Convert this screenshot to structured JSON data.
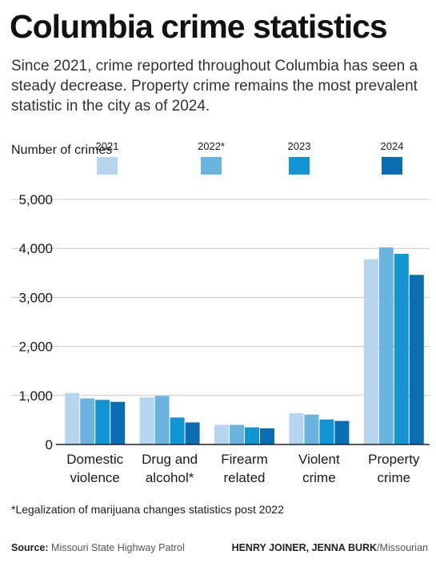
{
  "title": "Columbia crime statistics",
  "subtitle": "Since 2021, crime reported throughout Columbia has seen a steady decrease. Property crime remains the most prevalent statistic in the city as of 2024.",
  "legend_title": "Number of crimes",
  "footnote": "*Legalization of marijuana changes statistics post 2022",
  "source": {
    "label": "Source:",
    "text": "Missouri State Highway Patrol"
  },
  "credit": {
    "names": "HENRY JOINER, JENNA BURK",
    "outlet": "/Missourian"
  },
  "chart_data": {
    "type": "bar",
    "ylabel": "Number of crimes",
    "ylim": [
      0,
      5000
    ],
    "yticks": [
      "0",
      "1,000",
      "2,000",
      "3,000",
      "4,000",
      "5,000"
    ],
    "ytick_values": [
      0,
      1000,
      2000,
      3000,
      4000,
      5000
    ],
    "grid": true,
    "legend_position": "top",
    "categories": [
      "Domestic violence",
      "Drug and alcohol*",
      "Firearm related",
      "Violent crime",
      "Property crime"
    ],
    "category_lines": [
      [
        "Domestic",
        "violence"
      ],
      [
        "Drug and",
        "alcohol*"
      ],
      [
        "Firearm",
        "related"
      ],
      [
        "Violent",
        "crime"
      ],
      [
        "Property",
        "crime"
      ]
    ],
    "series": [
      {
        "name": "2021",
        "color": "#b6d5ee",
        "values": [
          1050,
          960,
          400,
          640,
          3780
        ]
      },
      {
        "name": "2022*",
        "color": "#6cb4e0",
        "values": [
          940,
          990,
          400,
          610,
          4020
        ]
      },
      {
        "name": "2023",
        "color": "#1495d3",
        "values": [
          910,
          550,
          350,
          510,
          3890
        ]
      },
      {
        "name": "2024",
        "color": "#0a6db2",
        "values": [
          870,
          450,
          330,
          480,
          3460
        ]
      }
    ]
  }
}
